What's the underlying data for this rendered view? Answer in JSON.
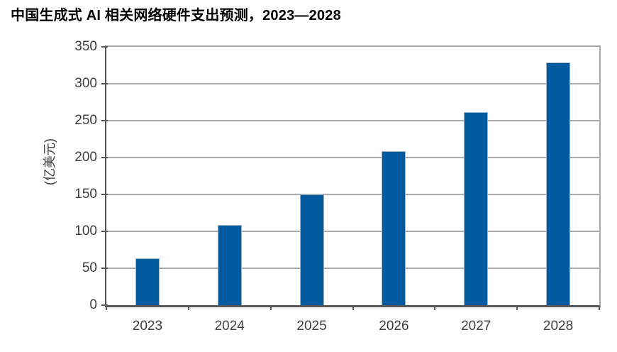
{
  "chart_data": {
    "type": "bar",
    "title": "中国生成式 AI 相关网络硬件支出预测，2023—2028",
    "xlabel": "",
    "ylabel": "(亿美元)",
    "categories": [
      "2023",
      "2024",
      "2025",
      "2026",
      "2027",
      "2028"
    ],
    "values": [
      63,
      109,
      150,
      209,
      262,
      329
    ],
    "ylim": [
      0,
      350
    ],
    "yticks": [
      0,
      50,
      100,
      150,
      200,
      250,
      300,
      350
    ],
    "grid": "horizontal",
    "legend": "none",
    "colors": {
      "bar": "#005a9d",
      "bar_border": "#9db3c8",
      "gridline": "#ababab",
      "axis": "#595959",
      "tick_label": "#404040",
      "title": "#000000",
      "background": "#ffffff"
    }
  }
}
